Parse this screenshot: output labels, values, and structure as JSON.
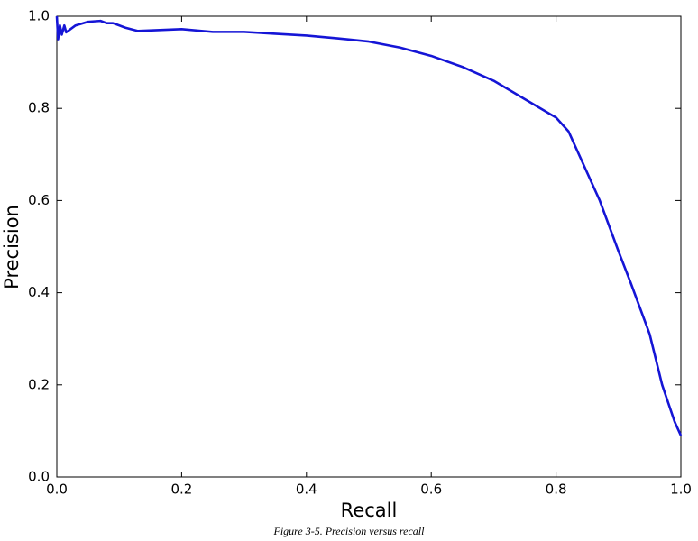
{
  "chart_data": {
    "type": "line",
    "xlabel": "Recall",
    "ylabel": "Precision",
    "caption": "Figure 3-5. Precision versus recall",
    "x": [
      0,
      0.002,
      0.005,
      0.008,
      0.012,
      0.015,
      0.03,
      0.05,
      0.07,
      0.08,
      0.09,
      0.11,
      0.13,
      0.2,
      0.25,
      0.3,
      0.35,
      0.4,
      0.45,
      0.5,
      0.55,
      0.6,
      0.65,
      0.7,
      0.75,
      0.8,
      0.82,
      0.85,
      0.87,
      0.9,
      0.92,
      0.95,
      0.97,
      0.98,
      0.99,
      1.0
    ],
    "series": [
      {
        "name": "Precision",
        "color": "#1515d6",
        "values": [
          1.0,
          0.95,
          0.98,
          0.96,
          0.98,
          0.965,
          0.98,
          0.988,
          0.99,
          0.985,
          0.985,
          0.975,
          0.968,
          0.972,
          0.966,
          0.966,
          0.962,
          0.958,
          0.952,
          0.945,
          0.932,
          0.914,
          0.89,
          0.86,
          0.82,
          0.78,
          0.75,
          0.66,
          0.6,
          0.49,
          0.42,
          0.31,
          0.2,
          0.16,
          0.12,
          0.09
        ]
      }
    ],
    "xlim": [
      0,
      1
    ],
    "ylim": [
      0,
      1
    ],
    "xticks": [
      {
        "value": 0,
        "label": "0.0"
      },
      0.2,
      0.4,
      0.6,
      0.8,
      {
        "value": 1,
        "label": "1.0"
      }
    ],
    "yticks": [
      {
        "value": 0,
        "label": "0.0"
      },
      0.2,
      0.4,
      0.6,
      0.8,
      {
        "value": 1,
        "label": "1.0"
      }
    ],
    "grid": false
  }
}
